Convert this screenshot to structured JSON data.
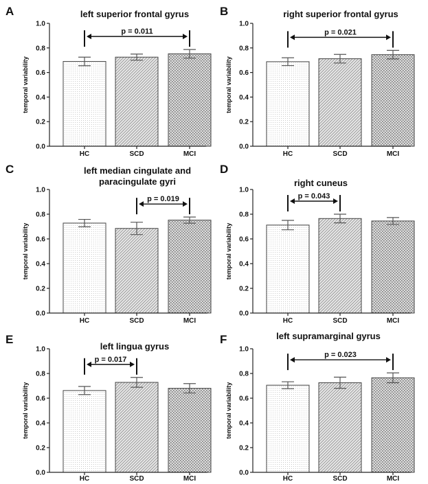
{
  "chart_data": [
    {
      "letter": "A",
      "type": "bar",
      "title": [
        "left superior frontal gyrus"
      ],
      "ylabel": "temporal variability",
      "ylim": [
        0,
        1.0
      ],
      "yticks": [
        "0.0",
        "0.2",
        "0.4",
        "0.6",
        "0.8",
        "1.0"
      ],
      "categories": [
        "HC",
        "SCD",
        "MCI"
      ],
      "values": [
        0.69,
        0.725,
        0.752
      ],
      "errors": [
        0.035,
        0.025,
        0.035
      ],
      "comparison": {
        "from": 0,
        "to": 2,
        "label": "p = 0.011"
      }
    },
    {
      "letter": "B",
      "type": "bar",
      "title": [
        "right superior frontal gyrus"
      ],
      "ylabel": "temporal variability",
      "ylim": [
        0,
        1.0
      ],
      "yticks": [
        "0.0",
        "0.2",
        "0.4",
        "0.6",
        "0.8",
        "1.0"
      ],
      "categories": [
        "HC",
        "SCD",
        "MCI"
      ],
      "values": [
        0.688,
        0.712,
        0.745
      ],
      "errors": [
        0.032,
        0.035,
        0.035
      ],
      "comparison": {
        "from": 0,
        "to": 2,
        "label": "p = 0.021"
      }
    },
    {
      "letter": "C",
      "type": "bar",
      "title": [
        "left median cingulate and",
        "paracingulate gyri"
      ],
      "ylabel": "temporal variability",
      "ylim": [
        0,
        1.0
      ],
      "yticks": [
        "0.0",
        "0.2",
        "0.4",
        "0.6",
        "0.8",
        "1.0"
      ],
      "categories": [
        "HC",
        "SCD",
        "MCI"
      ],
      "values": [
        0.728,
        0.685,
        0.752
      ],
      "errors": [
        0.03,
        0.05,
        0.025
      ],
      "comparison": {
        "from": 1,
        "to": 2,
        "label": "p = 0.019"
      }
    },
    {
      "letter": "D",
      "type": "bar",
      "title": [
        "right cuneus"
      ],
      "ylabel": "temporal variability",
      "ylim": [
        0,
        1.0
      ],
      "yticks": [
        "0.0",
        "0.2",
        "0.4",
        "0.6",
        "0.8",
        "1.0"
      ],
      "categories": [
        "HC",
        "SCD",
        "MCI"
      ],
      "values": [
        0.712,
        0.765,
        0.745
      ],
      "errors": [
        0.038,
        0.035,
        0.028
      ],
      "comparison": {
        "from": 0,
        "to": 1,
        "label": "p = 0.043"
      }
    },
    {
      "letter": "E",
      "type": "bar",
      "title": [
        "left lingua gyrus"
      ],
      "ylabel": "temporal variability",
      "ylim": [
        0,
        1.0
      ],
      "yticks": [
        "0.0",
        "0.2",
        "0.4",
        "0.6",
        "0.8",
        "1.0"
      ],
      "categories": [
        "HC",
        "SCD",
        "MCI"
      ],
      "values": [
        0.662,
        0.728,
        0.68
      ],
      "errors": [
        0.033,
        0.04,
        0.038
      ],
      "comparison": {
        "from": 0,
        "to": 1,
        "label": "p = 0.017"
      }
    },
    {
      "letter": "F",
      "type": "bar",
      "title": [
        "left supramarginal gyrus"
      ],
      "ylabel": "temporal variability",
      "ylim": [
        0,
        1.0
      ],
      "yticks": [
        "0.0",
        "0.2",
        "0.4",
        "0.6",
        "0.8",
        "1.0"
      ],
      "categories": [
        "HC",
        "SCD",
        "MCI"
      ],
      "values": [
        0.705,
        0.725,
        0.765
      ],
      "errors": [
        0.028,
        0.045,
        0.04
      ],
      "comparison": {
        "from": 0,
        "to": 2,
        "label": "p = 0.023"
      }
    }
  ]
}
